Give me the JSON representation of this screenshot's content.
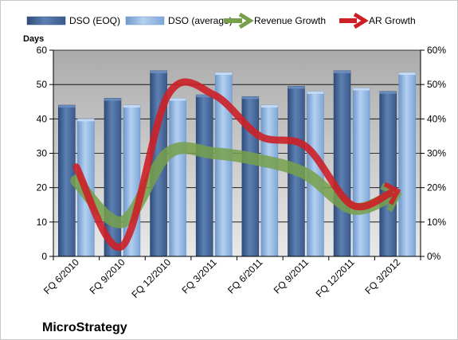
{
  "chart_data": {
    "type": "bar",
    "company": "MicroStrategy",
    "ylabel_left": "Days",
    "categories": [
      "FQ 6/2010",
      "FQ 9/2010",
      "FQ 12/2010",
      "FQ 3/2011",
      "FQ 6/2011",
      "FQ 9/2011",
      "FQ 12/2011",
      "FQ 3/2012"
    ],
    "ylim_left": [
      0,
      60
    ],
    "yticks_left": [
      "0",
      "10",
      "20",
      "30",
      "40",
      "50",
      "60"
    ],
    "ylim_right": [
      0,
      60
    ],
    "yticks_right": [
      "0%",
      "10%",
      "20%",
      "30%",
      "40%",
      "50%",
      "60%"
    ],
    "grid": true,
    "legend_position": "top",
    "bar_series": [
      {
        "name": "DSO (EOQ)",
        "color": "#4a6a9b",
        "values": [
          44,
          46,
          54,
          47,
          46.5,
          49.5,
          54,
          48
        ]
      },
      {
        "name": "DSO (average)",
        "color": "#8fb4e2",
        "values": [
          40,
          44,
          46,
          53.5,
          44,
          48,
          49,
          53.5
        ]
      }
    ],
    "line_series": [
      {
        "name": "Revenue Growth",
        "color": "#77a04b",
        "axis": "right",
        "values": [
          22,
          10,
          30,
          30,
          28,
          24,
          14,
          18
        ]
      },
      {
        "name": "AR Growth",
        "color": "#cc2027",
        "axis": "right",
        "values": [
          26,
          3,
          47,
          47,
          35,
          32,
          15,
          19
        ]
      }
    ]
  }
}
